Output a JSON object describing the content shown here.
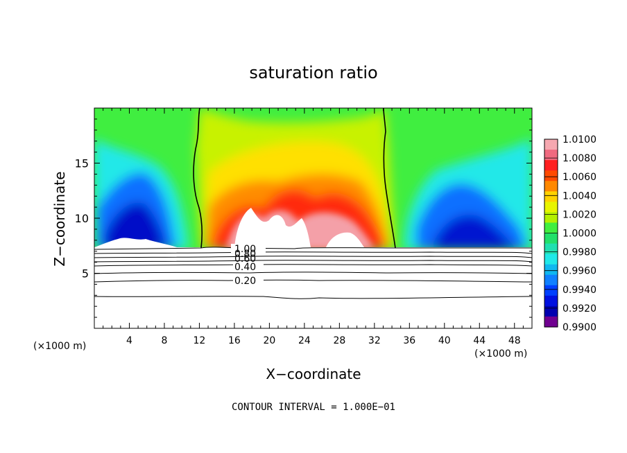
{
  "chart_data": {
    "type": "heatmap",
    "title": "saturation ratio",
    "xlabel": "X−coordinate",
    "ylabel": "Z−coordinate",
    "x_unit": "(×1000 m)",
    "xlim": [
      0,
      50
    ],
    "ylim": [
      0,
      20
    ],
    "xticks": [
      4,
      8,
      12,
      16,
      20,
      24,
      28,
      32,
      36,
      40,
      44,
      48
    ],
    "yticks": [
      5,
      10,
      15
    ],
    "footer": "CONTOUR INTERVAL = 1.000E−01",
    "colorbar": {
      "min": 0.99,
      "max": 1.01,
      "labels": [
        "1.0100",
        "1.0080",
        "1.0060",
        "1.0040",
        "1.0020",
        "1.0000",
        "0.9980",
        "0.9960",
        "0.9940",
        "0.9920",
        "0.9900"
      ],
      "colors": [
        "#f6a8b0",
        "#f06a80",
        "#ff2020",
        "#ff4a00",
        "#ff8800",
        "#ffd200",
        "#e8f400",
        "#b4f000",
        "#40ee40",
        "#22e06a",
        "#20e0b0",
        "#20e8e8",
        "#10b8f0",
        "#1080ff",
        "#0040ff",
        "#0010e0",
        "#0000b0",
        "#700090"
      ]
    },
    "contour_labels": [
      "1.00",
      "0.80",
      "0.60",
      "0.40",
      "0.20"
    ],
    "contour_levels": [
      {
        "value": 0.2,
        "z": 4.2
      },
      {
        "value": 0.4,
        "z": 5.2
      },
      {
        "value": 0.6,
        "z": 6.0
      },
      {
        "value": 0.8,
        "z": 6.5
      },
      {
        "value": 1.0,
        "z": 7.0
      }
    ],
    "extra_contour_z": [
      2.8,
      5.7,
      6.2,
      6.8
    ],
    "saturation_boundary": {
      "left_x": [
        12.0,
        11.8,
        11.2,
        11.6,
        12.0,
        11.8,
        12.5,
        12.3
      ],
      "right_x": [
        33.6,
        33.4,
        33.0,
        32.8,
        33.0,
        32.5,
        32.7,
        32.6
      ],
      "z": [
        7.2,
        9.0,
        11.0,
        13.0,
        15.0,
        17.0,
        19.0,
        20.0
      ]
    }
  }
}
